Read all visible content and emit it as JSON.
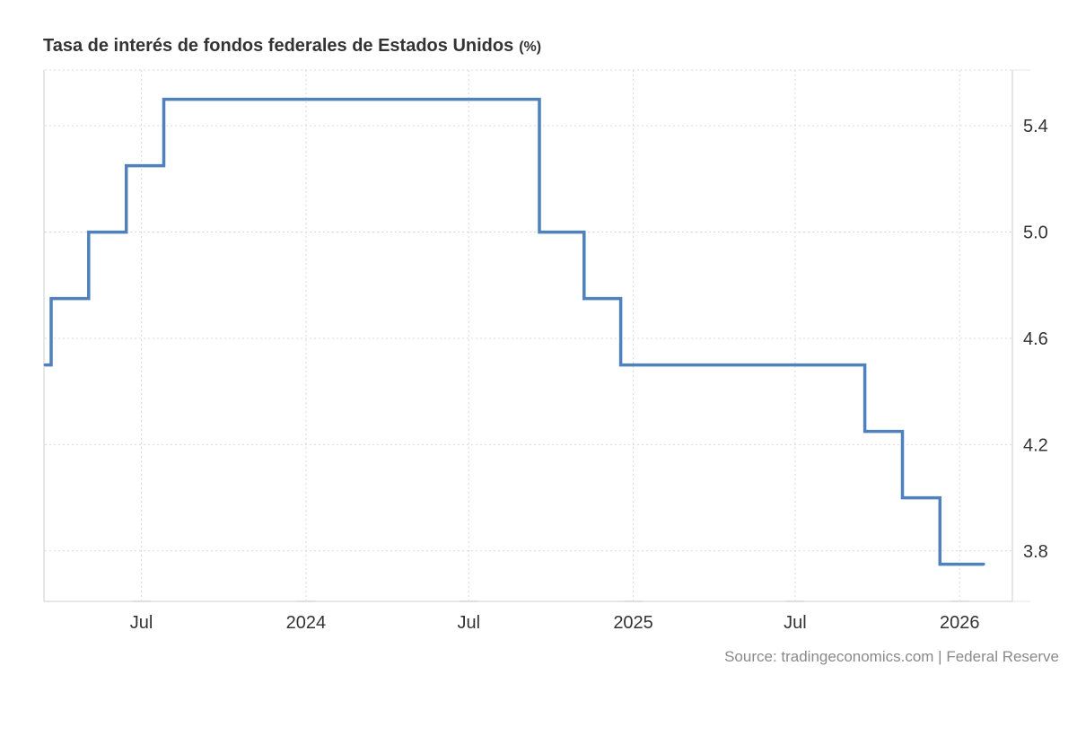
{
  "title": "Tasa de interés de fondos federales de Estados Unidos",
  "unit": "(%)",
  "source": "Source: tradingeconomics.com | Federal Reserve",
  "colors": {
    "line": "#4f81bd",
    "grid": "#d9d9d9",
    "axis": "#cccccc",
    "text": "#333333"
  },
  "chart_data": {
    "type": "line",
    "step": true,
    "x_range": [
      "2023-03-15",
      "2026-03-01"
    ],
    "ylim": [
      3.61,
      5.61
    ],
    "yticks": [
      3.8,
      4.2,
      4.6,
      5.0,
      5.4
    ],
    "ytick_labels": [
      "3.8",
      "4.2",
      "4.6",
      "5.0",
      "5.4"
    ],
    "xticks": [
      {
        "date": "2023-07-01",
        "label": "Jul"
      },
      {
        "date": "2024-01-01",
        "label": "2024"
      },
      {
        "date": "2024-07-01",
        "label": "Jul"
      },
      {
        "date": "2025-01-01",
        "label": "2025"
      },
      {
        "date": "2025-07-01",
        "label": "Jul"
      },
      {
        "date": "2026-01-01",
        "label": "2026"
      }
    ],
    "grid": true,
    "y_axis_side": "right",
    "series": [
      {
        "points": [
          {
            "x": "2023-03-15",
            "y": 4.5
          },
          {
            "x": "2023-03-22",
            "y": 4.75
          },
          {
            "x": "2023-05-03",
            "y": 5.0
          },
          {
            "x": "2023-06-14",
            "y": 5.25
          },
          {
            "x": "2023-07-26",
            "y": 5.5
          },
          {
            "x": "2024-09-18",
            "y": 5.0
          },
          {
            "x": "2024-11-07",
            "y": 4.75
          },
          {
            "x": "2024-12-18",
            "y": 4.5
          },
          {
            "x": "2025-09-17",
            "y": 4.25
          },
          {
            "x": "2025-10-29",
            "y": 4.0
          },
          {
            "x": "2025-12-10",
            "y": 3.75
          },
          {
            "x": "2026-01-28",
            "y": 3.75
          }
        ]
      }
    ]
  }
}
